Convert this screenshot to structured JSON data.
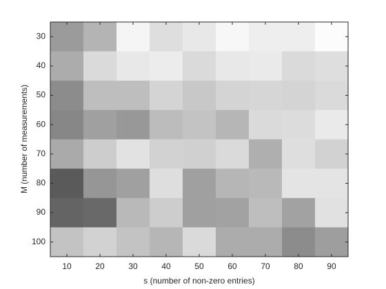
{
  "chart_data": {
    "type": "heatmap",
    "xlabel": "s (number of non-zero entries)",
    "ylabel": "M (number of measurements)",
    "x": [
      10,
      20,
      30,
      40,
      50,
      60,
      70,
      80,
      90
    ],
    "y": [
      30,
      40,
      50,
      60,
      70,
      80,
      90,
      100
    ],
    "colormap": "gray",
    "clim": [
      0,
      255
    ],
    "values": [
      [
        155,
        180,
        245,
        222,
        232,
        247,
        238,
        238,
        252
      ],
      [
        172,
        218,
        232,
        236,
        218,
        232,
        234,
        218,
        222
      ],
      [
        140,
        190,
        190,
        212,
        200,
        212,
        214,
        212,
        218
      ],
      [
        135,
        160,
        152,
        188,
        195,
        182,
        218,
        220,
        234
      ],
      [
        170,
        205,
        226,
        210,
        208,
        218,
        175,
        222,
        210
      ],
      [
        90,
        150,
        160,
        222,
        160,
        182,
        185,
        228,
        228
      ],
      [
        100,
        105,
        185,
        205,
        160,
        162,
        190,
        162,
        225
      ],
      [
        195,
        210,
        195,
        182,
        218,
        172,
        172,
        140,
        158
      ]
    ]
  }
}
